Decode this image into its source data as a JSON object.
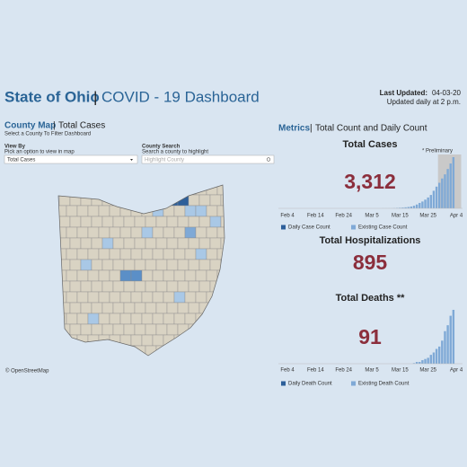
{
  "header": {
    "title_bold": "State of Ohio",
    "separator": "|",
    "title_rest": "COVID - 19 Dashboard",
    "last_updated_label": "Last Updated:",
    "last_updated": "04-03-20",
    "update_note": "Updated daily at 2 p.m."
  },
  "county_map": {
    "heading": "County Map",
    "subheading": "Total Cases",
    "instruction": "Select a County To Filter Dashboard",
    "view_by": {
      "label": "View By",
      "hint": "Pick an option to view in map",
      "value": "Total Cases"
    },
    "county_search": {
      "label": "County Search",
      "hint": "Search a county to highlight",
      "placeholder": "Highlight County"
    },
    "attribution": "© OpenStreetMap"
  },
  "metrics": {
    "heading": "Metrics",
    "subheading": "Total Count and Daily Count",
    "hospitalizations": {
      "title": "Total Hospitalizations",
      "total": "895"
    },
    "cases": {
      "title": "Total Cases",
      "total": "3,312",
      "note": "* Preliminary",
      "chart_data": {
        "type": "bar",
        "x": [
          "Mar 9",
          "Mar 10",
          "Mar 11",
          "Mar 12",
          "Mar 13",
          "Mar 14",
          "Mar 15",
          "Mar 16",
          "Mar 17",
          "Mar 18",
          "Mar 19",
          "Mar 20",
          "Mar 21",
          "Mar 22",
          "Mar 23",
          "Mar 24",
          "Mar 25",
          "Mar 26",
          "Mar 27",
          "Mar 28",
          "Mar 29",
          "Mar 30",
          "Mar 31",
          "Apr 1",
          "Apr 2",
          "Apr 3"
        ],
        "values": [
          3,
          3,
          4,
          5,
          13,
          26,
          37,
          50,
          67,
          88,
          119,
          169,
          247,
          351,
          442,
          564,
          704,
          867,
          1137,
          1406,
          1653,
          1933,
          2199,
          2547,
          2902,
          3312
        ],
        "color": "#7fa9d6",
        "xticks": [
          "Feb 4",
          "Feb 14",
          "Feb 24",
          "Mar 5",
          "Mar 15",
          "Mar 25",
          "Apr 4"
        ],
        "legend": [
          {
            "name": "Daily Case Count",
            "color": "#2d5f9a"
          },
          {
            "name": "Existing Case Count",
            "color": "#7fa9d6"
          }
        ]
      }
    },
    "deaths": {
      "title": "Total Deaths **",
      "total": "91",
      "chart_data": {
        "type": "bar",
        "x": [
          "Mar 20",
          "Mar 21",
          "Mar 22",
          "Mar 23",
          "Mar 24",
          "Mar 25",
          "Mar 26",
          "Mar 27",
          "Mar 28",
          "Mar 29",
          "Mar 30",
          "Mar 31",
          "Apr 1",
          "Apr 2",
          "Apr 3"
        ],
        "values": [
          1,
          3,
          3,
          6,
          8,
          10,
          15,
          19,
          25,
          29,
          39,
          55,
          65,
          81,
          91
        ],
        "color": "#7fa9d6",
        "xticks": [
          "Feb 4",
          "Feb 14",
          "Feb 24",
          "Mar 5",
          "Mar 15",
          "Mar 25",
          "Apr 4"
        ],
        "legend": [
          {
            "name": "Daily Death Count",
            "color": "#2d5f9a"
          },
          {
            "name": "Existing Death Count",
            "color": "#7fa9d6"
          }
        ]
      }
    }
  }
}
